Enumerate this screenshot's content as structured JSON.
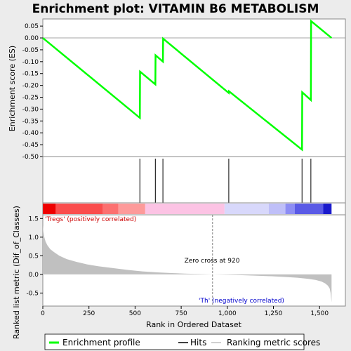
{
  "chart_data": {
    "type": "line",
    "title": "Enrichment plot: VITAMIN B6 METABOLISM",
    "colors": {
      "enrichment_line": "#00ff00",
      "hits": "#000000",
      "metric_fill": "#c0c0c0",
      "zero_cross_line": "#808080",
      "positive_note": "#cc0000",
      "negative_note": "#0000cc"
    },
    "top_panel": {
      "ylabel": "Enrichment score (ES)",
      "ylim": [
        -0.5,
        0.08
      ],
      "yticks": [
        0.05,
        0.0,
        -0.05,
        -0.1,
        -0.15,
        -0.2,
        -0.25,
        -0.3,
        -0.35,
        -0.4,
        -0.45,
        -0.5
      ],
      "ytick_labels": [
        "0.05",
        "0.00",
        "-0.05",
        "-0.10",
        "-0.15",
        "-0.20",
        "-0.25",
        "-0.30",
        "-0.35",
        "-0.40",
        "-0.45",
        "-0.50"
      ],
      "series": [
        {
          "x": [
            0,
            526,
            527,
            610,
            611,
            651,
            652,
            1008,
            1009,
            1405,
            1406,
            1453,
            1454,
            1565
          ],
          "y": [
            0.0,
            -0.337,
            -0.142,
            -0.196,
            -0.073,
            -0.1,
            -0.003,
            -0.232,
            -0.225,
            -0.471,
            -0.229,
            -0.262,
            0.071,
            0.0
          ]
        }
      ]
    },
    "hits": [
      526,
      610,
      651,
      1008,
      1405,
      1453
    ],
    "colorbar": {
      "segments": [
        {
          "start": 0,
          "end": 70,
          "color": "#ee0000"
        },
        {
          "start": 70,
          "end": 325,
          "color": "#fa4d4d"
        },
        {
          "start": 325,
          "end": 410,
          "color": "#fc7070"
        },
        {
          "start": 410,
          "end": 555,
          "color": "#fd9a9a"
        },
        {
          "start": 555,
          "end": 985,
          "color": "#fcc3e4"
        },
        {
          "start": 985,
          "end": 1225,
          "color": "#d8d8fb"
        },
        {
          "start": 1225,
          "end": 1315,
          "color": "#bfbff8"
        },
        {
          "start": 1315,
          "end": 1365,
          "color": "#8d8df4"
        },
        {
          "start": 1365,
          "end": 1520,
          "color": "#5a5ae6"
        },
        {
          "start": 1520,
          "end": 1565,
          "color": "#1a1acc"
        }
      ]
    },
    "bottom_panel": {
      "xlabel": "Rank in Ordered Dataset",
      "ylabel": "Ranked list metric (Dif_of_Classes)",
      "xlim": [
        0,
        1640
      ],
      "ylim": [
        -0.85,
        1.6
      ],
      "xticks": [
        0,
        250,
        500,
        750,
        1000,
        1250,
        1500
      ],
      "xtick_labels": [
        "0",
        "250",
        "500",
        "750",
        "1,000",
        "1,250",
        "1,500"
      ],
      "yticks": [
        1.5,
        1.0,
        0.5,
        0.0,
        -0.5
      ],
      "ytick_labels": [
        "1.5",
        "1.0",
        "0.5",
        "0.0",
        "-0.5"
      ],
      "metric_x": [
        0,
        3,
        8,
        15,
        25,
        40,
        60,
        90,
        130,
        180,
        240,
        300,
        380,
        460,
        540,
        620,
        700,
        780,
        860,
        920,
        1000,
        1080,
        1160,
        1240,
        1320,
        1380,
        1440,
        1480,
        1510,
        1530,
        1545,
        1555,
        1560,
        1565
      ],
      "metric_y": [
        1.33,
        1.15,
        1.0,
        0.88,
        0.78,
        0.68,
        0.6,
        0.5,
        0.41,
        0.34,
        0.27,
        0.22,
        0.17,
        0.12,
        0.08,
        0.055,
        0.035,
        0.02,
        0.01,
        0.0,
        -0.01,
        -0.02,
        -0.035,
        -0.05,
        -0.07,
        -0.09,
        -0.12,
        -0.15,
        -0.19,
        -0.24,
        -0.3,
        -0.38,
        -0.5,
        -0.75
      ],
      "zero_cross": 920,
      "zero_cross_label": "Zero cross at 920",
      "positive_label": "'Tregs' (positively correlated)",
      "negative_label": "'Th' (negatively correlated)"
    },
    "legend": {
      "items": [
        {
          "label": "Enrichment profile",
          "color": "#00ff00"
        },
        {
          "label": "Hits",
          "color": "#000000"
        },
        {
          "label": "Ranking metric scores",
          "color": "#c0c0c0"
        }
      ]
    }
  }
}
